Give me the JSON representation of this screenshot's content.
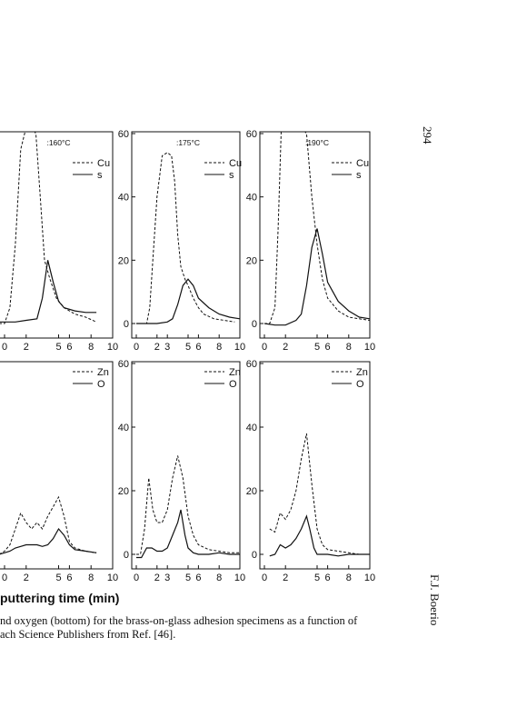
{
  "page": {
    "page_number": "294",
    "author": "F.J. Boerio",
    "x_axis_label": "puttering time (min)",
    "caption_line1": "nd oxygen (bottom) for the brass-on-glass adhesion specimens as a function of",
    "caption_line2": "ach Science Publishers from Ref. [46]."
  },
  "chart_data": [
    {
      "type": "line",
      "row": "top",
      "panel_label": ":160°C",
      "xlim": [
        0,
        10
      ],
      "ylim": [
        0,
        60
      ],
      "x_ticks": [
        "0",
        "2",
        "5",
        "6",
        "8",
        "10"
      ],
      "y_ticks": [],
      "series": [
        {
          "name": "Cu",
          "style": "dashed",
          "x": [
            -0.5,
            0,
            0.5,
            1.0,
            1.5,
            2.0,
            2.5,
            2.9,
            3.3,
            3.7,
            4.2,
            4.8,
            5.5,
            6.5,
            7.5,
            8.5
          ],
          "y": [
            0,
            0,
            5,
            25,
            55,
            62,
            62,
            60,
            40,
            20,
            14,
            8,
            5,
            3,
            2,
            0.5
          ]
        },
        {
          "name": "s",
          "style": "solid",
          "x": [
            -0.5,
            0,
            1,
            2,
            3,
            3.5,
            4.0,
            4.5,
            5.0,
            5.5,
            6.5,
            7.5,
            8.5
          ],
          "y": [
            0.5,
            0.5,
            0.5,
            1,
            1.5,
            8,
            20,
            13,
            7,
            5,
            4,
            3.5,
            3.5
          ]
        }
      ]
    },
    {
      "type": "line",
      "row": "top",
      "panel_label": ":175°C",
      "xlim": [
        0,
        10
      ],
      "ylim": [
        0,
        60
      ],
      "x_ticks": [
        "0",
        "2",
        "3",
        "5",
        "6",
        "8",
        "10"
      ],
      "y_ticks": [
        "0",
        "20",
        "40",
        "60"
      ],
      "series": [
        {
          "name": "Cu",
          "style": "dashed",
          "x": [
            0,
            0.5,
            1.0,
            1.3,
            1.6,
            2.0,
            2.5,
            3.0,
            3.4,
            3.7,
            4.0,
            4.3,
            4.7,
            5.0,
            5.5,
            6.0,
            6.5,
            7.5,
            8.5,
            9.5
          ],
          "y": [
            0,
            0,
            0,
            5,
            20,
            40,
            53,
            54,
            53,
            45,
            28,
            18,
            14,
            12,
            8,
            5,
            3,
            1.5,
            1,
            0.5
          ]
        },
        {
          "name": "s",
          "style": "solid",
          "x": [
            0,
            1,
            2,
            3,
            3.5,
            4.0,
            4.5,
            5.0,
            5.5,
            6.0,
            7.0,
            8.0,
            9.0,
            10.0
          ],
          "y": [
            0,
            0,
            0,
            0.5,
            1.5,
            6,
            12,
            14,
            12,
            8,
            5,
            3,
            2,
            1.5
          ]
        }
      ]
    },
    {
      "type": "line",
      "row": "top",
      "panel_label": ":190°C",
      "xlim": [
        0,
        10
      ],
      "ylim": [
        0,
        60
      ],
      "x_ticks": [
        "0",
        "2",
        "5",
        "6",
        "8",
        "10"
      ],
      "y_ticks": [
        "0",
        "20",
        "40",
        "60"
      ],
      "series": [
        {
          "name": "Cu",
          "style": "dashed",
          "x": [
            0,
            0.5,
            1.0,
            1.3,
            1.6,
            2.0,
            2.5,
            3.0,
            3.5,
            4.0,
            4.5,
            5.0,
            5.5,
            6.0,
            7.0,
            8.0,
            9.0,
            10.0
          ],
          "y": [
            0,
            0,
            5,
            30,
            62,
            62,
            62,
            62,
            62,
            60,
            40,
            25,
            14,
            8,
            4,
            2,
            1.5,
            1
          ]
        },
        {
          "name": "s",
          "style": "solid",
          "x": [
            0,
            1,
            2,
            3,
            3.5,
            4.0,
            4.5,
            5.0,
            5.5,
            6.0,
            7.0,
            8.0,
            9.0,
            10.0
          ],
          "y": [
            0,
            -0.5,
            -0.5,
            1,
            3,
            12,
            24,
            30,
            22,
            13,
            7,
            4,
            2,
            1.5
          ]
        }
      ]
    },
    {
      "type": "line",
      "row": "bottom",
      "panel_label": "",
      "xlim": [
        0,
        10
      ],
      "ylim": [
        0,
        60
      ],
      "x_ticks": [
        "0",
        "2",
        "5",
        "6",
        "8",
        "10"
      ],
      "y_ticks": [],
      "series": [
        {
          "name": "Zn",
          "style": "dashed",
          "x": [
            -0.5,
            0,
            0.5,
            1.0,
            1.5,
            2.0,
            2.5,
            3.0,
            3.5,
            4.0,
            4.5,
            5.0,
            5.5,
            6.0,
            6.5,
            7.5,
            8.5
          ],
          "y": [
            0,
            1,
            3,
            8,
            13,
            10,
            8,
            10,
            8,
            12,
            15,
            18,
            12,
            4,
            2,
            1,
            0.5
          ]
        },
        {
          "name": "O",
          "style": "solid",
          "x": [
            -0.5,
            0,
            0.5,
            1.0,
            1.5,
            2.0,
            2.5,
            3.0,
            3.5,
            4.0,
            4.5,
            5.0,
            5.5,
            6.0,
            6.5,
            7.5,
            8.5
          ],
          "y": [
            0,
            0.5,
            1,
            2,
            2.5,
            3,
            3,
            3,
            2.5,
            3,
            5,
            8,
            6,
            3,
            1.5,
            1,
            0.5
          ]
        }
      ]
    },
    {
      "type": "line",
      "row": "bottom",
      "panel_label": "",
      "xlim": [
        0,
        10
      ],
      "ylim": [
        0,
        60
      ],
      "x_ticks": [
        "0",
        "2",
        "3",
        "5",
        "6",
        "8",
        "10"
      ],
      "y_ticks": [
        "0",
        "20",
        "40",
        "60"
      ],
      "series": [
        {
          "name": "Zn",
          "style": "dashed",
          "x": [
            0,
            0.4,
            0.8,
            1.2,
            1.6,
            2.0,
            2.5,
            3.0,
            3.5,
            4.0,
            4.5,
            5.0,
            5.5,
            6.0,
            7.0,
            8.0,
            9.0,
            10.0
          ],
          "y": [
            0,
            0,
            8,
            24,
            14,
            10,
            10,
            14,
            24,
            31,
            24,
            12,
            6,
            3,
            1.5,
            1,
            0.5,
            0.5
          ]
        },
        {
          "name": "O",
          "style": "solid",
          "x": [
            0,
            0.5,
            1.0,
            1.5,
            2.0,
            2.5,
            3.0,
            3.5,
            4.0,
            4.3,
            4.7,
            5.0,
            5.5,
            6.0,
            7.0,
            8.0,
            9.0,
            10.0
          ],
          "y": [
            -1,
            -1,
            2,
            2,
            1,
            1,
            2,
            6,
            10,
            14,
            6,
            2,
            0.5,
            0,
            0,
            0.5,
            0,
            0
          ]
        }
      ]
    },
    {
      "type": "line",
      "row": "bottom",
      "panel_label": "",
      "xlim": [
        0,
        10
      ],
      "ylim": [
        0,
        60
      ],
      "x_ticks": [
        "0",
        "2",
        "5",
        "6",
        "8",
        "10"
      ],
      "y_ticks": [
        "0",
        "20",
        "40",
        "60"
      ],
      "series": [
        {
          "name": "Zn",
          "style": "dashed",
          "x": [
            0.5,
            1.0,
            1.5,
            2.0,
            2.5,
            3.0,
            3.5,
            4.0,
            4.5,
            5.0,
            5.5,
            6.0,
            7.0,
            8.0,
            9.0,
            10.0
          ],
          "y": [
            8,
            7,
            13,
            11,
            14,
            20,
            30,
            38,
            22,
            8,
            3,
            1.5,
            1,
            0.5,
            0,
            0
          ]
        },
        {
          "name": "O",
          "style": "solid",
          "x": [
            0.5,
            1.0,
            1.5,
            2.0,
            2.5,
            3.0,
            3.5,
            4.0,
            4.3,
            4.7,
            5.0,
            6.0,
            7.0,
            8.0,
            9.0,
            10.0
          ],
          "y": [
            -0.5,
            0,
            3,
            2,
            3,
            5,
            8,
            12,
            8,
            2,
            0,
            0,
            -0.5,
            0,
            0,
            0
          ]
        }
      ]
    }
  ]
}
